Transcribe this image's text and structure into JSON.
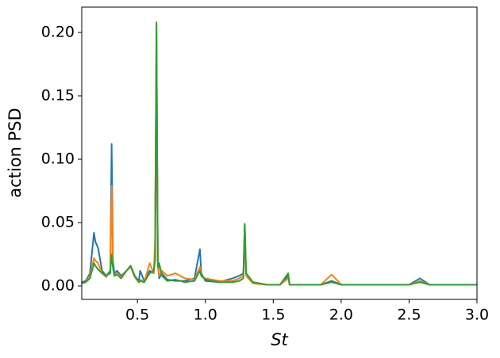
{
  "chart_data": {
    "type": "line",
    "xlabel": "St",
    "ylabel": "action PSD",
    "x": [
      0.09,
      0.12,
      0.15,
      0.18,
      0.19,
      0.21,
      0.24,
      0.27,
      0.3,
      0.31,
      0.32,
      0.33,
      0.35,
      0.38,
      0.42,
      0.45,
      0.48,
      0.51,
      0.52,
      0.55,
      0.59,
      0.62,
      0.63,
      0.64,
      0.65,
      0.66,
      0.68,
      0.72,
      0.78,
      0.85,
      0.92,
      0.96,
      0.97,
      1.0,
      1.1,
      1.2,
      1.25,
      1.28,
      1.29,
      1.3,
      1.35,
      1.45,
      1.55,
      1.61,
      1.62,
      1.7,
      1.85,
      1.93,
      2.0,
      2.2,
      2.5,
      2.58,
      2.65,
      2.8,
      3.0
    ],
    "series": [
      {
        "color": "#1f77b4",
        "values": [
          0.003,
          0.004,
          0.01,
          0.042,
          0.035,
          0.03,
          0.012,
          0.008,
          0.01,
          0.112,
          0.02,
          0.01,
          0.012,
          0.008,
          0.012,
          0.016,
          0.008,
          0.004,
          0.012,
          0.004,
          0.012,
          0.01,
          0.03,
          0.2,
          0.02,
          0.006,
          0.01,
          0.005,
          0.004,
          0.004,
          0.006,
          0.029,
          0.01,
          0.004,
          0.003,
          0.006,
          0.008,
          0.01,
          0.048,
          0.01,
          0.003,
          0.001,
          0.001,
          0.008,
          0.001,
          0.001,
          0.001,
          0.004,
          0.001,
          0.001,
          0.001,
          0.006,
          0.001,
          0.001,
          0.001
        ]
      },
      {
        "color": "#ff7f0e",
        "values": [
          0.002,
          0.003,
          0.008,
          0.022,
          0.02,
          0.018,
          0.01,
          0.007,
          0.012,
          0.079,
          0.015,
          0.008,
          0.01,
          0.007,
          0.012,
          0.015,
          0.007,
          0.003,
          0.005,
          0.003,
          0.018,
          0.01,
          0.035,
          0.19,
          0.015,
          0.008,
          0.012,
          0.008,
          0.01,
          0.006,
          0.005,
          0.015,
          0.008,
          0.006,
          0.004,
          0.004,
          0.006,
          0.008,
          0.045,
          0.008,
          0.002,
          0.001,
          0.001,
          0.006,
          0.001,
          0.001,
          0.001,
          0.009,
          0.001,
          0.001,
          0.001,
          0.004,
          0.001,
          0.001,
          0.001
        ]
      },
      {
        "color": "#2ca02c",
        "values": [
          0.002,
          0.003,
          0.006,
          0.018,
          0.016,
          0.013,
          0.01,
          0.008,
          0.012,
          0.025,
          0.014,
          0.008,
          0.009,
          0.006,
          0.012,
          0.016,
          0.008,
          0.003,
          0.004,
          0.003,
          0.01,
          0.012,
          0.02,
          0.208,
          0.015,
          0.018,
          0.008,
          0.004,
          0.005,
          0.003,
          0.004,
          0.012,
          0.008,
          0.005,
          0.003,
          0.003,
          0.004,
          0.006,
          0.049,
          0.01,
          0.003,
          0.001,
          0.001,
          0.01,
          0.001,
          0.001,
          0.001,
          0.003,
          0.001,
          0.001,
          0.001,
          0.003,
          0.001,
          0.001,
          0.001
        ]
      }
    ],
    "xlim": [
      0.09,
      3.0
    ],
    "xticks": [
      0.5,
      {
        "value": 1.0,
        "label": "1.0"
      },
      1.5,
      {
        "value": 2.0,
        "label": "2.0"
      },
      2.5,
      {
        "value": 3.0,
        "label": "3.0"
      }
    ],
    "ylim": [
      -0.0106,
      0.22
    ],
    "yticks": [
      {
        "value": 0,
        "label": "0.00"
      },
      {
        "value": 0.05,
        "label": "0.05"
      },
      {
        "value": 0.1,
        "label": "0.10"
      },
      {
        "value": 0.15,
        "label": "0.15"
      },
      {
        "value": 0.2,
        "label": "0.20"
      }
    ]
  }
}
